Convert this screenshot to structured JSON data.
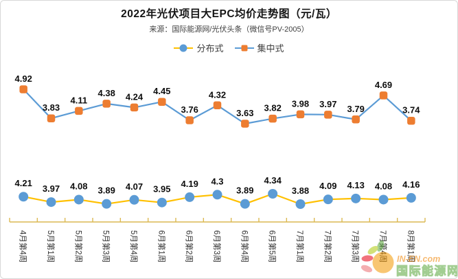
{
  "header": {
    "title": "2022年光伏项目大EPC均价走势图（元/瓦）",
    "subtitle": "来源：国际能源网/光伏头条（微信号PV-2005）"
  },
  "chart_data": {
    "type": "line",
    "title": "2022年光伏项目大EPC均价走势图（元/瓦）",
    "source": "来源：国际能源网/光伏头条（微信号PV-2005）",
    "categories": [
      "4月第4周",
      "5月第1周",
      "5月第2周",
      "5月第3周",
      "5月第4周",
      "6月第1周",
      "6月第2周",
      "6月第3周",
      "6月第4周",
      "6月第5周",
      "7月第1周",
      "7月第2周",
      "7月第3周",
      "7月第4周",
      "8月第1周"
    ],
    "series": [
      {
        "name": "分布式",
        "marker": "circle",
        "marker_color": "#5B9BD5",
        "line_color": "#FFC000",
        "values": [
          4.21,
          3.97,
          4.08,
          3.89,
          4.07,
          3.95,
          4.19,
          4.3,
          3.89,
          4.34,
          3.88,
          4.09,
          4.13,
          4.08,
          4.16
        ]
      },
      {
        "name": "集中式",
        "marker": "square",
        "marker_color": "#ED7D31",
        "line_color": "#5B9BD5",
        "values": [
          4.92,
          3.83,
          4.11,
          4.38,
          4.24,
          4.45,
          3.76,
          4.32,
          3.63,
          3.82,
          3.98,
          3.97,
          3.79,
          4.69,
          3.74
        ]
      }
    ],
    "data_labels": true,
    "grid": false,
    "y_axis_visible": false,
    "legend_position": "top",
    "unit": "元/瓦"
  },
  "colors": {
    "axis": "#DCB952",
    "data_label": "#0d0d0d",
    "tick_label": "#333333"
  },
  "watermark": {
    "line1": "IN-EN.com",
    "line2": "国际能源网",
    "orange": "#F08300",
    "green": "#57A639"
  }
}
